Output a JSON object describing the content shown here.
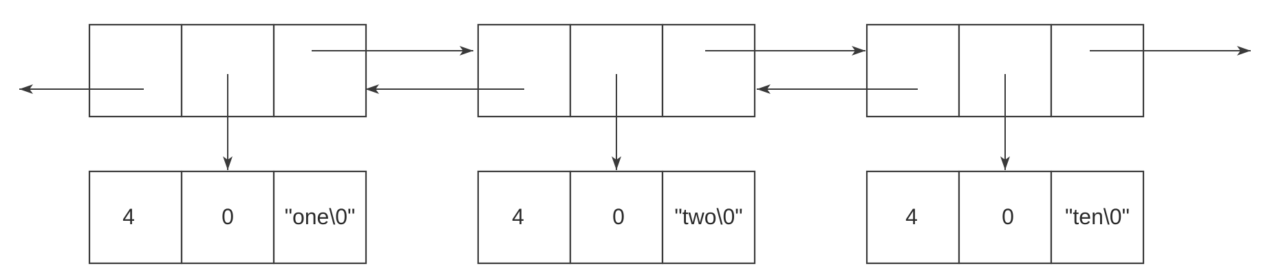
{
  "nodes": [
    {
      "name": "list-node-1",
      "data": {
        "length": "4",
        "flag": "0",
        "text": "\"one\\0\""
      }
    },
    {
      "name": "list-node-2",
      "data": {
        "length": "4",
        "flag": "0",
        "text": "\"two\\0\""
      }
    },
    {
      "name": "list-node-3",
      "data": {
        "length": "4",
        "flag": "0",
        "text": "\"ten\\0\""
      }
    }
  ],
  "colors": {
    "stroke": "#3a3a3a",
    "text": "#2b2b2b",
    "background": "#ffffff"
  }
}
